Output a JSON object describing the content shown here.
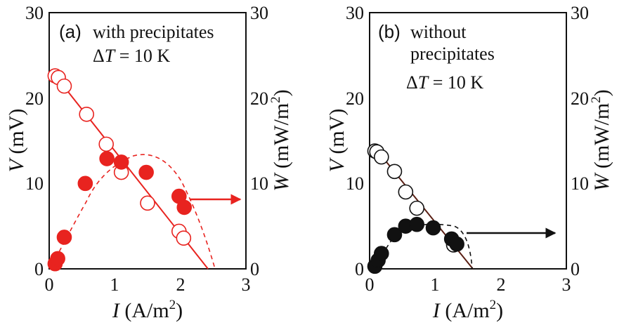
{
  "figure": {
    "panels": [
      "(a)",
      "(b)"
    ]
  },
  "chart_data": [
    {
      "type": "scatter",
      "panel_label": "(a)",
      "annotation_lines": [
        "with precipitates",
        "ΔT = 10 K"
      ],
      "xlabel": "I (A/m2)",
      "ylabel_left": "V (mV)",
      "ylabel_right": "W (mW/m2)",
      "xlim": [
        0,
        3
      ],
      "ylim_left": [
        0,
        30
      ],
      "ylim_right": [
        0,
        30
      ],
      "x_ticks": [
        "0",
        "1",
        "2",
        "3"
      ],
      "y_ticks_left": [
        "0",
        "10",
        "20",
        "30"
      ],
      "y_ticks_right": [
        "0",
        "10",
        "20",
        "30"
      ],
      "color": "#e8231f",
      "series": [
        {
          "axis": "left",
          "marker": "open-circle",
          "fit": "solid-line",
          "x": [
            0.09,
            0.14,
            0.23,
            0.57,
            0.87,
            1.1,
            1.5,
            1.98,
            2.05
          ],
          "y": [
            22.6,
            22.4,
            21.4,
            18.1,
            14.6,
            11.3,
            7.7,
            4.4,
            3.6
          ]
        },
        {
          "axis": "right",
          "marker": "filled-circle",
          "fit": "dashed-curve",
          "x": [
            0.09,
            0.13,
            0.23,
            0.55,
            0.88,
            1.1,
            1.48,
            1.98,
            2.06
          ],
          "y": [
            0.6,
            1.2,
            3.7,
            10.0,
            12.9,
            12.5,
            11.3,
            8.5,
            7.2
          ]
        }
      ],
      "arrow_direction": "right"
    },
    {
      "type": "scatter",
      "panel_label": "(b)",
      "annotation_lines": [
        "without",
        "precipitates",
        "ΔT = 10 K"
      ],
      "xlabel": "I (A/m2)",
      "ylabel_left": "V (mV)",
      "ylabel_right": "W (mW/m2)",
      "xlim": [
        0,
        3
      ],
      "ylim_left": [
        0,
        30
      ],
      "ylim_right": [
        0,
        30
      ],
      "x_ticks": [
        "0",
        "1",
        "2",
        "3"
      ],
      "y_ticks_left": [
        "0",
        "10",
        "20",
        "30"
      ],
      "y_ticks_right": [
        "0",
        "10",
        "20",
        "30"
      ],
      "color": "#111111",
      "series": [
        {
          "axis": "left",
          "marker": "open-circle",
          "fit": "solid-line",
          "x": [
            0.08,
            0.11,
            0.18,
            0.38,
            0.55,
            0.72,
            1.28
          ],
          "y": [
            13.8,
            13.7,
            13.1,
            11.4,
            9.0,
            7.1,
            2.8
          ]
        },
        {
          "axis": "right",
          "marker": "filled-circle",
          "fit": "dashed-curve",
          "x": [
            0.08,
            0.13,
            0.18,
            0.38,
            0.55,
            0.72,
            0.97,
            1.25,
            1.33
          ],
          "y": [
            0.3,
            1.0,
            1.8,
            4.0,
            5.0,
            5.2,
            4.8,
            3.5,
            2.9
          ]
        }
      ],
      "arrow_direction": "right"
    }
  ]
}
